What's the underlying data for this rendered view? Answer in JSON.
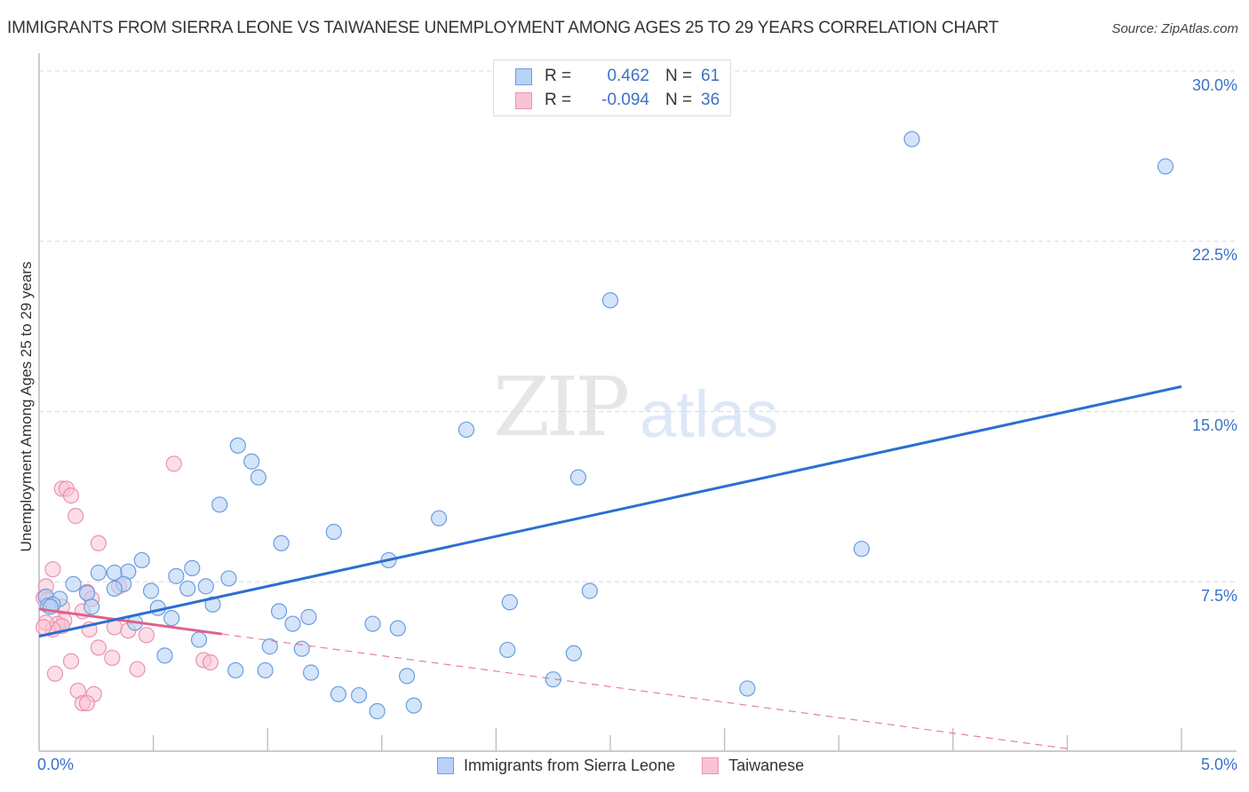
{
  "header": {
    "title": "IMMIGRANTS FROM SIERRA LEONE VS TAIWANESE UNEMPLOYMENT AMONG AGES 25 TO 29 YEARS CORRELATION CHART",
    "source": "Source: ZipAtlas.com"
  },
  "watermark": {
    "zip": "ZIP",
    "atlas": "atlas"
  },
  "legend_top": {
    "rows": [
      {
        "r_label": "R =",
        "r_value": "0.462",
        "n_label": "N =",
        "n_value": "61"
      },
      {
        "r_label": "R =",
        "r_value": "-0.094",
        "n_label": "N =",
        "n_value": "36"
      }
    ]
  },
  "legend_bottom": {
    "items": [
      {
        "label": "Immigrants from Sierra Leone"
      },
      {
        "label": "Taiwanese"
      }
    ]
  },
  "colors": {
    "blue_fill": "#b8d2f5",
    "blue_stroke": "#6a9ee0",
    "blue_line": "#2b6fd1",
    "pink_fill": "#f9c3d3",
    "pink_stroke": "#e993af",
    "pink_line": "#e0608a",
    "axis_label": "#3a72c8"
  },
  "chart_data": {
    "type": "scatter",
    "title": "IMMIGRANTS FROM SIERRA LEONE VS TAIWANESE UNEMPLOYMENT AMONG AGES 25 TO 29 YEARS CORRELATION CHART",
    "xlabel": "",
    "ylabel": "Unemployment Among Ages 25 to 29 years",
    "xlim": [
      0,
      5.0
    ],
    "ylim": [
      0,
      30.0
    ],
    "x_tick_labels": [
      "0.0%",
      "5.0%"
    ],
    "y_tick_labels": [
      "7.5%",
      "15.0%",
      "22.5%",
      "30.0%"
    ],
    "y_ticks": [
      7.5,
      15.0,
      22.5,
      30.0
    ],
    "grid": "horizontal dashed",
    "legend_position": "bottom center",
    "series": [
      {
        "name": "Immigrants from Sierra Leone",
        "R": 0.462,
        "N": 61,
        "trend": {
          "x": [
            0.0,
            5.0
          ],
          "y": [
            5.1,
            16.1
          ]
        },
        "points": [
          [
            3.82,
            27.0
          ],
          [
            4.93,
            25.8
          ],
          [
            2.5,
            19.9
          ],
          [
            1.87,
            14.2
          ],
          [
            0.87,
            13.5
          ],
          [
            0.93,
            12.8
          ],
          [
            0.96,
            12.1
          ],
          [
            2.36,
            12.1
          ],
          [
            0.79,
            10.9
          ],
          [
            1.75,
            10.3
          ],
          [
            1.06,
            9.2
          ],
          [
            1.29,
            9.7
          ],
          [
            3.6,
            8.95
          ],
          [
            1.53,
            8.45
          ],
          [
            0.45,
            8.45
          ],
          [
            0.26,
            7.9
          ],
          [
            0.33,
            7.9
          ],
          [
            0.39,
            7.95
          ],
          [
            0.67,
            8.1
          ],
          [
            0.6,
            7.75
          ],
          [
            0.83,
            7.65
          ],
          [
            0.37,
            7.4
          ],
          [
            0.15,
            7.4
          ],
          [
            0.21,
            7.0
          ],
          [
            2.41,
            7.1
          ],
          [
            0.49,
            7.1
          ],
          [
            0.65,
            7.2
          ],
          [
            0.73,
            7.3
          ],
          [
            0.03,
            6.85
          ],
          [
            0.09,
            6.75
          ],
          [
            2.06,
            6.6
          ],
          [
            0.04,
            6.45
          ],
          [
            0.23,
            6.4
          ],
          [
            0.76,
            6.5
          ],
          [
            0.52,
            6.35
          ],
          [
            1.05,
            6.2
          ],
          [
            1.18,
            5.95
          ],
          [
            0.58,
            5.9
          ],
          [
            0.42,
            5.7
          ],
          [
            1.11,
            5.65
          ],
          [
            1.46,
            5.65
          ],
          [
            1.57,
            5.45
          ],
          [
            0.7,
            4.95
          ],
          [
            2.05,
            4.5
          ],
          [
            1.01,
            4.65
          ],
          [
            1.15,
            4.55
          ],
          [
            0.55,
            4.25
          ],
          [
            2.34,
            4.35
          ],
          [
            0.86,
            3.6
          ],
          [
            0.99,
            3.6
          ],
          [
            1.19,
            3.5
          ],
          [
            1.61,
            3.35
          ],
          [
            2.25,
            3.2
          ],
          [
            3.1,
            2.8
          ],
          [
            1.31,
            2.55
          ],
          [
            1.4,
            2.5
          ],
          [
            1.48,
            1.8
          ],
          [
            1.64,
            2.05
          ],
          [
            0.06,
            6.5
          ],
          [
            0.05,
            6.4
          ],
          [
            0.33,
            7.2
          ]
        ]
      },
      {
        "name": "Taiwanese",
        "R": -0.094,
        "N": 36,
        "trend": {
          "x": [
            0.0,
            0.8
          ],
          "y": [
            6.3,
            5.2
          ],
          "dashed_extension_to": [
            4.5,
            0.15
          ]
        },
        "points": [
          [
            0.59,
            12.7
          ],
          [
            0.1,
            11.6
          ],
          [
            0.12,
            11.6
          ],
          [
            0.14,
            11.3
          ],
          [
            0.16,
            10.4
          ],
          [
            0.26,
            9.2
          ],
          [
            0.06,
            8.05
          ],
          [
            0.03,
            7.3
          ],
          [
            0.35,
            7.3
          ],
          [
            0.21,
            7.05
          ],
          [
            0.02,
            6.8
          ],
          [
            0.04,
            6.7
          ],
          [
            0.23,
            6.75
          ],
          [
            0.1,
            6.4
          ],
          [
            0.19,
            6.2
          ],
          [
            0.11,
            5.8
          ],
          [
            0.08,
            5.65
          ],
          [
            0.1,
            5.55
          ],
          [
            0.06,
            5.4
          ],
          [
            0.33,
            5.5
          ],
          [
            0.22,
            5.4
          ],
          [
            0.39,
            5.35
          ],
          [
            0.47,
            5.15
          ],
          [
            0.72,
            4.05
          ],
          [
            0.75,
            3.95
          ],
          [
            0.14,
            4.0
          ],
          [
            0.26,
            4.6
          ],
          [
            0.32,
            4.15
          ],
          [
            0.43,
            3.65
          ],
          [
            0.07,
            3.45
          ],
          [
            0.17,
            2.7
          ],
          [
            0.24,
            2.55
          ],
          [
            0.19,
            2.15
          ],
          [
            0.21,
            2.15
          ],
          [
            0.03,
            5.7
          ],
          [
            0.02,
            5.5
          ]
        ]
      }
    ]
  }
}
